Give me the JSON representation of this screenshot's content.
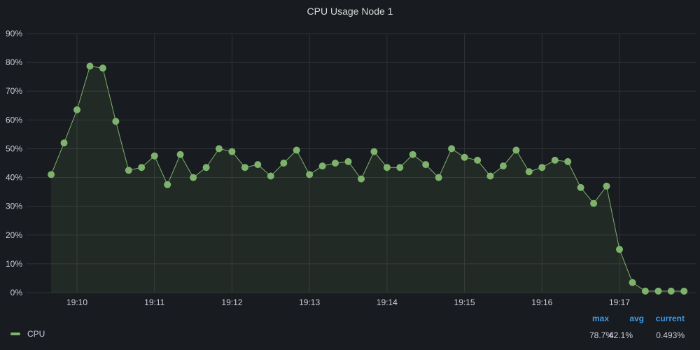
{
  "panel": {
    "title": "CPU Usage Node 1"
  },
  "colors": {
    "series": "#7eb26d",
    "fill": "#1f2820",
    "grid": "#2f3237",
    "axis_text": "#ccccdc",
    "legend_header": "#3d9ae8"
  },
  "legend": {
    "headers": {
      "max": "max",
      "avg": "avg",
      "current": "current"
    },
    "items": [
      {
        "name": "CPU",
        "max": "78.7%",
        "avg": "42.1%",
        "current": "0.493%"
      }
    ]
  },
  "chart_data": {
    "type": "area",
    "title": "CPU Usage Node 1",
    "xlabel": "",
    "ylabel": "",
    "ylim": [
      0,
      90
    ],
    "y_ticks": [
      0,
      10,
      20,
      30,
      40,
      50,
      60,
      70,
      80,
      90
    ],
    "y_tick_labels": [
      "0%",
      "10%",
      "20%",
      "30%",
      "40%",
      "50%",
      "60%",
      "70%",
      "80%",
      "90%"
    ],
    "xlim": [
      19.65,
      19.98
    ],
    "x_ticks": [
      10,
      11,
      12,
      13,
      14,
      15,
      16,
      17
    ],
    "x_tick_labels": [
      "19:10",
      "19:11",
      "19:12",
      "19:13",
      "19:14",
      "19:15",
      "19:16",
      "19:17"
    ],
    "x_unit": "minutes past 19:00",
    "grid": true,
    "series": [
      {
        "name": "CPU",
        "x": [
          9.667,
          9.833,
          10.0,
          10.167,
          10.333,
          10.5,
          10.667,
          10.833,
          11.0,
          11.167,
          11.333,
          11.5,
          11.667,
          11.833,
          12.0,
          12.167,
          12.333,
          12.5,
          12.667,
          12.833,
          13.0,
          13.167,
          13.333,
          13.5,
          13.667,
          13.833,
          14.0,
          14.167,
          14.333,
          14.5,
          14.667,
          14.833,
          15.0,
          15.167,
          15.333,
          15.5,
          15.667,
          15.833,
          16.0,
          16.167,
          16.333,
          16.5,
          16.667,
          16.833,
          17.0,
          17.167,
          17.333,
          17.5,
          17.667,
          17.833
        ],
        "values": [
          41,
          52,
          63.5,
          78.7,
          78,
          59.5,
          42.5,
          43.5,
          47.5,
          37.5,
          48,
          40,
          43.5,
          50,
          49,
          43.5,
          44.5,
          40.5,
          45,
          49.5,
          41,
          44,
          45,
          45.5,
          39.5,
          49,
          43.5,
          43.5,
          48,
          44.5,
          40,
          50,
          47,
          46,
          40.5,
          44,
          49.5,
          42,
          43.5,
          46,
          45.5,
          36.5,
          31,
          37,
          15,
          3.5,
          0.5,
          0.5,
          0.5,
          0.493
        ]
      }
    ]
  }
}
